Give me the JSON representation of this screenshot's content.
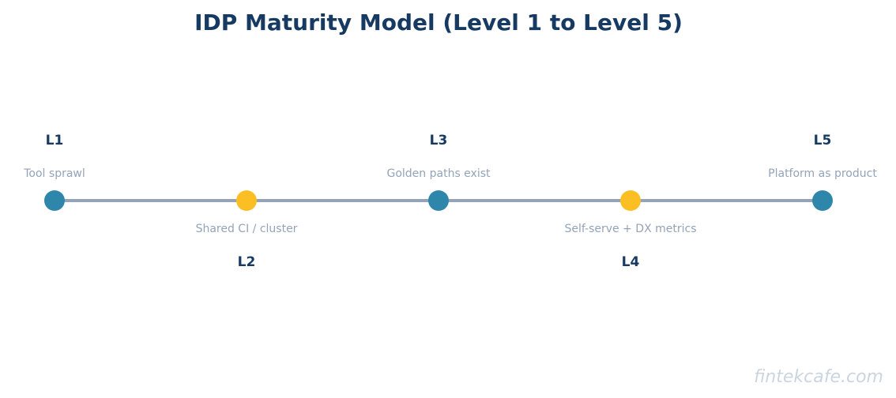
{
  "title": "IDP Maturity Model (Level 1 to Level 5)",
  "watermark": "fintekcafe.com",
  "colors": {
    "title": "#173a63",
    "label": "#173a63",
    "description": "#94a3b8",
    "timeline": "#94a3b8",
    "marker_primary": "#2e86ab",
    "marker_accent": "#fbbf24",
    "watermark": "#cbd5e1"
  },
  "levels": [
    {
      "label": "L1",
      "description": "Tool sprawl",
      "side": "above",
      "marker": "primary"
    },
    {
      "label": "L2",
      "description": "Shared CI / cluster",
      "side": "below",
      "marker": "accent"
    },
    {
      "label": "L3",
      "description": "Golden paths exist",
      "side": "above",
      "marker": "primary"
    },
    {
      "label": "L4",
      "description": "Self-serve + DX metrics",
      "side": "below",
      "marker": "accent"
    },
    {
      "label": "L5",
      "description": "Platform as product",
      "side": "above",
      "marker": "primary"
    }
  ]
}
